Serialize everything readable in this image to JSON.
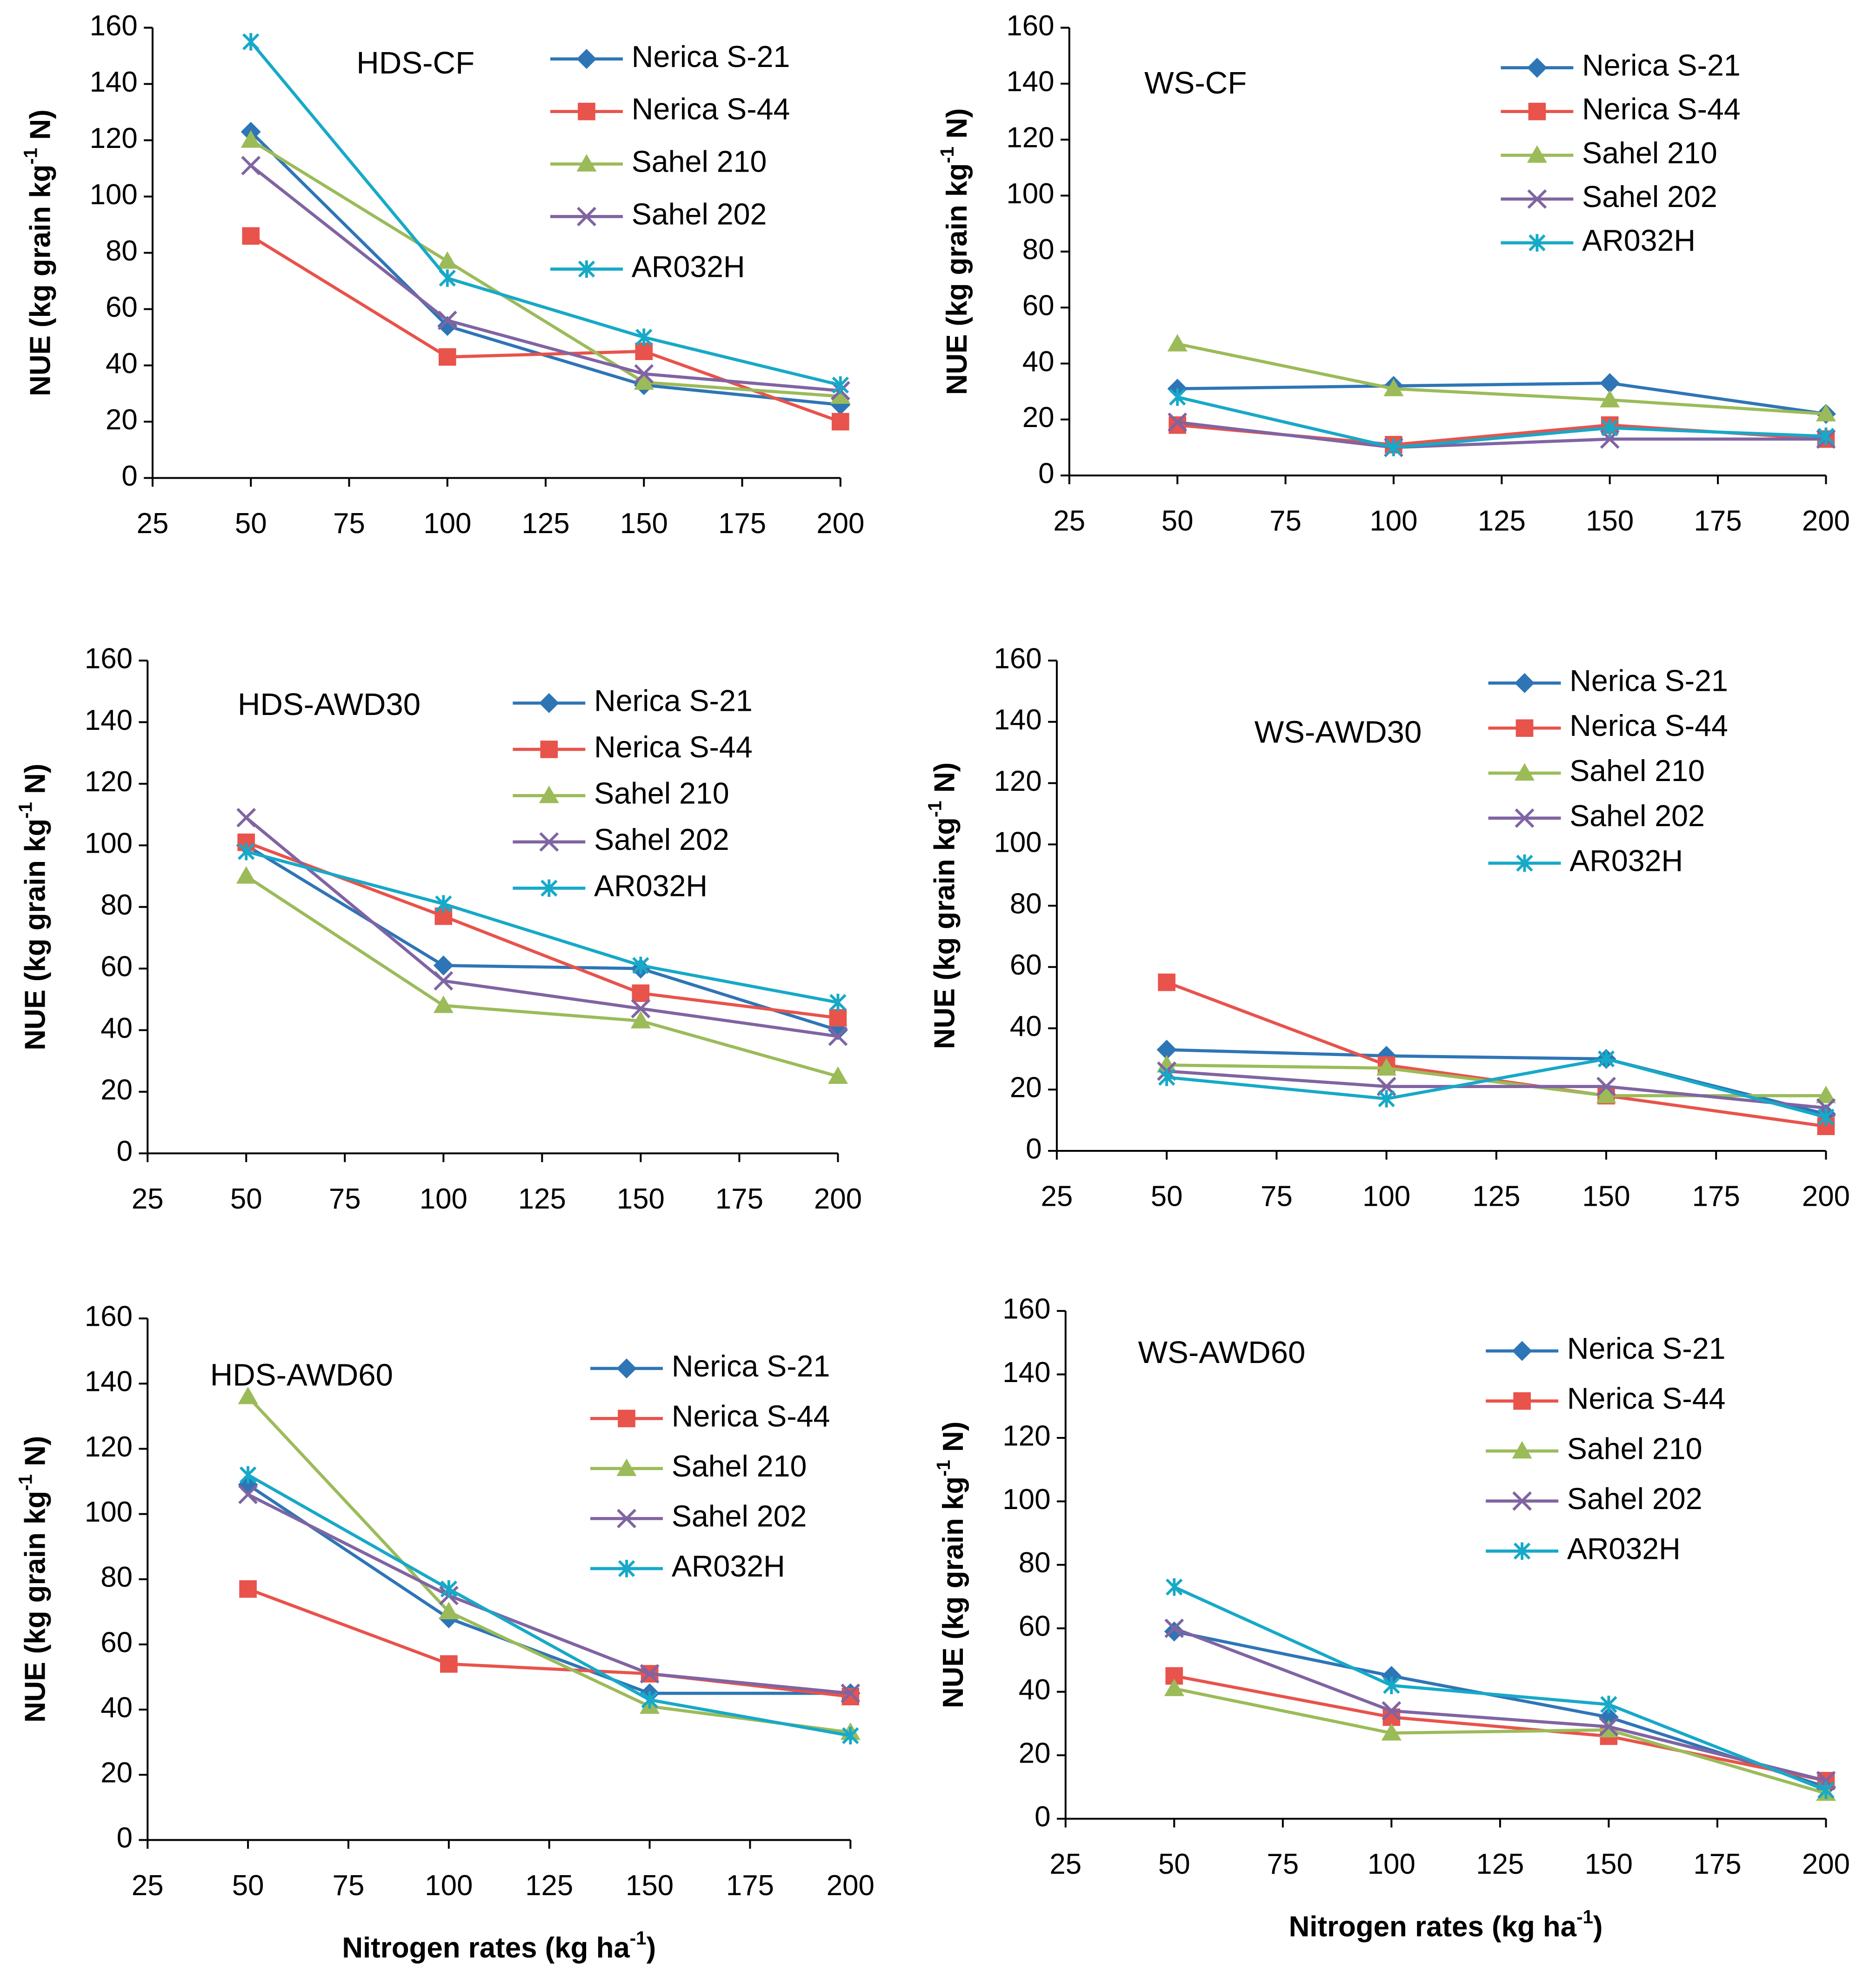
{
  "chart_data": [
    {
      "type": "line",
      "label": "HDS-CF",
      "ylabel": [
        "NUE (kg grain kg",
        "-1",
        " N)"
      ],
      "x": [
        50,
        100,
        150,
        200
      ],
      "xlim": [
        25,
        200
      ],
      "xticks": [
        25,
        50,
        75,
        100,
        125,
        150,
        175,
        200
      ],
      "ylim": [
        0,
        160
      ],
      "yticks": [
        0,
        20,
        40,
        60,
        80,
        100,
        120,
        140,
        160
      ],
      "series": [
        {
          "name": "Nerica S-21",
          "color": "#2e75b6",
          "marker": "diamond",
          "values": [
            123,
            54,
            33,
            26
          ]
        },
        {
          "name": "Nerica S-44",
          "color": "#e8534b",
          "marker": "square",
          "values": [
            86,
            43,
            45,
            20
          ]
        },
        {
          "name": "Sahel 210",
          "color": "#9bbb59",
          "marker": "triangle",
          "values": [
            120,
            77,
            34,
            29
          ]
        },
        {
          "name": "Sahel 202",
          "color": "#8064a2",
          "marker": "x",
          "values": [
            111,
            56,
            37,
            31
          ]
        },
        {
          "name": "AR032H",
          "color": "#17a9c8",
          "marker": "star",
          "values": [
            155,
            71,
            50,
            33
          ]
        }
      ]
    },
    {
      "type": "line",
      "label": "WS-CF",
      "ylabel": [
        "NUE (kg grain kg",
        "-1",
        " N)"
      ],
      "x": [
        50,
        100,
        150,
        200
      ],
      "xlim": [
        25,
        200
      ],
      "xticks": [
        25,
        50,
        75,
        100,
        125,
        150,
        175,
        200
      ],
      "ylim": [
        0,
        160
      ],
      "yticks": [
        0,
        20,
        40,
        60,
        80,
        100,
        120,
        140,
        160
      ],
      "series": [
        {
          "name": "Nerica S-21",
          "color": "#2e75b6",
          "marker": "diamond",
          "values": [
            31,
            32,
            33,
            22
          ]
        },
        {
          "name": "Nerica S-44",
          "color": "#e8534b",
          "marker": "square",
          "values": [
            18,
            11,
            18,
            13
          ]
        },
        {
          "name": "Sahel 210",
          "color": "#9bbb59",
          "marker": "triangle",
          "values": [
            47,
            31,
            27,
            22
          ]
        },
        {
          "name": "Sahel 202",
          "color": "#8064a2",
          "marker": "x",
          "values": [
            19,
            10,
            13,
            13
          ]
        },
        {
          "name": "AR032H",
          "color": "#17a9c8",
          "marker": "star",
          "values": [
            28,
            10,
            17,
            14
          ]
        }
      ]
    },
    {
      "type": "line",
      "label": "HDS-AWD30",
      "ylabel": [
        "NUE (kg grain kg",
        "-1",
        " N)"
      ],
      "x": [
        50,
        100,
        150,
        200
      ],
      "xlim": [
        25,
        200
      ],
      "xticks": [
        25,
        50,
        75,
        100,
        125,
        150,
        175,
        200
      ],
      "ylim": [
        0,
        160
      ],
      "yticks": [
        0,
        20,
        40,
        60,
        80,
        100,
        120,
        140,
        160
      ],
      "series": [
        {
          "name": "Nerica S-21",
          "color": "#2e75b6",
          "marker": "diamond",
          "values": [
            100,
            61,
            60,
            40
          ]
        },
        {
          "name": "Nerica S-44",
          "color": "#e8534b",
          "marker": "square",
          "values": [
            101,
            77,
            52,
            44
          ]
        },
        {
          "name": "Sahel 210",
          "color": "#9bbb59",
          "marker": "triangle",
          "values": [
            90,
            48,
            43,
            25
          ]
        },
        {
          "name": "Sahel 202",
          "color": "#8064a2",
          "marker": "x",
          "values": [
            109,
            56,
            47,
            38
          ]
        },
        {
          "name": "AR032H",
          "color": "#17a9c8",
          "marker": "star",
          "values": [
            98,
            81,
            61,
            49
          ]
        }
      ]
    },
    {
      "type": "line",
      "label": "WS-AWD30",
      "ylabel": [
        "NUE (kg grain kg",
        "-1",
        " N)"
      ],
      "x": [
        50,
        100,
        150,
        200
      ],
      "xlim": [
        25,
        200
      ],
      "xticks": [
        25,
        50,
        75,
        100,
        125,
        150,
        175,
        200
      ],
      "ylim": [
        0,
        160
      ],
      "yticks": [
        0,
        20,
        40,
        60,
        80,
        100,
        120,
        140,
        160
      ],
      "series": [
        {
          "name": "Nerica S-21",
          "color": "#2e75b6",
          "marker": "diamond",
          "values": [
            33,
            31,
            30,
            12
          ]
        },
        {
          "name": "Nerica S-44",
          "color": "#e8534b",
          "marker": "square",
          "values": [
            55,
            28,
            18,
            8
          ]
        },
        {
          "name": "Sahel 210",
          "color": "#9bbb59",
          "marker": "triangle",
          "values": [
            28,
            27,
            18,
            18
          ]
        },
        {
          "name": "Sahel 202",
          "color": "#8064a2",
          "marker": "x",
          "values": [
            26,
            21,
            21,
            14
          ]
        },
        {
          "name": "AR032H",
          "color": "#17a9c8",
          "marker": "star",
          "values": [
            24,
            17,
            30,
            11
          ]
        }
      ]
    },
    {
      "type": "line",
      "label": "HDS-AWD60",
      "ylabel": [
        "NUE (kg grain kg",
        "-1",
        " N)"
      ],
      "xlabel": [
        "Nitrogen rates (kg ha",
        "-1",
        ")"
      ],
      "x": [
        50,
        100,
        150,
        200
      ],
      "xlim": [
        25,
        200
      ],
      "xticks": [
        25,
        50,
        75,
        100,
        125,
        150,
        175,
        200
      ],
      "ylim": [
        0,
        160
      ],
      "yticks": [
        0,
        20,
        40,
        60,
        80,
        100,
        120,
        140,
        160
      ],
      "series": [
        {
          "name": "Nerica S-21",
          "color": "#2e75b6",
          "marker": "diamond",
          "values": [
            109,
            68,
            45,
            45
          ]
        },
        {
          "name": "Nerica S-44",
          "color": "#e8534b",
          "marker": "square",
          "values": [
            77,
            54,
            51,
            44
          ]
        },
        {
          "name": "Sahel 210",
          "color": "#9bbb59",
          "marker": "triangle",
          "values": [
            136,
            70,
            41,
            33
          ]
        },
        {
          "name": "Sahel 202",
          "color": "#8064a2",
          "marker": "x",
          "values": [
            106,
            75,
            51,
            45
          ]
        },
        {
          "name": "AR032H",
          "color": "#17a9c8",
          "marker": "star",
          "values": [
            112,
            77,
            43,
            32
          ]
        }
      ]
    },
    {
      "type": "line",
      "label": "WS-AWD60",
      "ylabel": [
        "NUE (kg grain kg",
        "-1",
        " N)"
      ],
      "xlabel": [
        "Nitrogen rates (kg ha",
        "-1",
        ")"
      ],
      "x": [
        50,
        100,
        150,
        200
      ],
      "xlim": [
        25,
        200
      ],
      "xticks": [
        25,
        50,
        75,
        100,
        125,
        150,
        175,
        200
      ],
      "ylim": [
        0,
        160
      ],
      "yticks": [
        0,
        20,
        40,
        60,
        80,
        100,
        120,
        140,
        160
      ],
      "series": [
        {
          "name": "Nerica S-21",
          "color": "#2e75b6",
          "marker": "diamond",
          "values": [
            59,
            45,
            32,
            10
          ]
        },
        {
          "name": "Nerica S-44",
          "color": "#e8534b",
          "marker": "square",
          "values": [
            45,
            32,
            26,
            12
          ]
        },
        {
          "name": "Sahel 210",
          "color": "#9bbb59",
          "marker": "triangle",
          "values": [
            41,
            27,
            28,
            8
          ]
        },
        {
          "name": "Sahel 202",
          "color": "#8064a2",
          "marker": "x",
          "values": [
            60,
            34,
            29,
            12
          ]
        },
        {
          "name": "AR032H",
          "color": "#17a9c8",
          "marker": "star",
          "values": [
            73,
            42,
            36,
            9
          ]
        }
      ]
    }
  ]
}
